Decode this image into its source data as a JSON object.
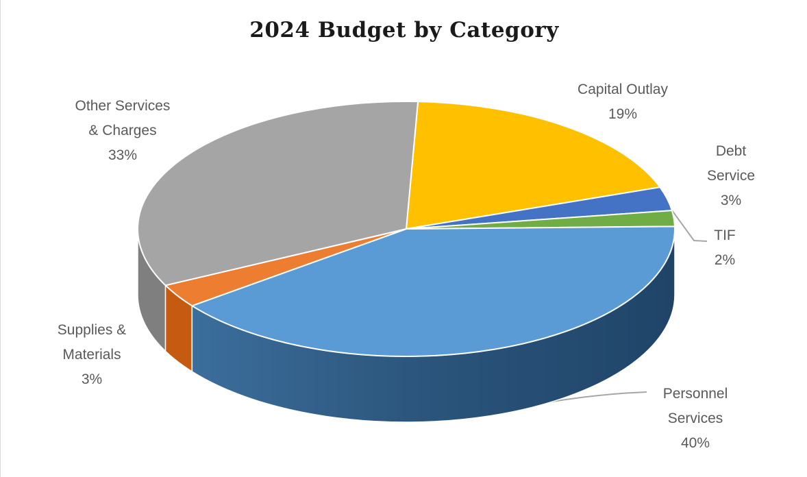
{
  "chart_data": {
    "type": "pie",
    "is_3d": true,
    "title": "2024 Budget by Category",
    "legend": "none",
    "start_angle_deg": 2.5,
    "label_color": "#595959",
    "leader_line_color": "#A6A6A6",
    "slices": [
      {
        "slug": "capital-outlay",
        "category": "Capital Outlay",
        "value_pct": 19,
        "color": "#FFC000",
        "side_color": "#BF9000",
        "label": "Capital Outlay\n19%"
      },
      {
        "slug": "debt-service",
        "category": "Debt Service",
        "value_pct": 3,
        "color": "#4472C4",
        "side_color": "#2F5597",
        "label": "Debt Service\n3%"
      },
      {
        "slug": "tif",
        "category": "TIF",
        "value_pct": 2,
        "color": "#70AD47",
        "side_color": "#548235",
        "label": "TIF\n2%"
      },
      {
        "slug": "personnel-services",
        "category": "Personnel Services",
        "value_pct": 40,
        "color": "#5B9BD5",
        "side_color": "#2E5B80",
        "label": "Personnel\nServices\n40%"
      },
      {
        "slug": "supplies-materials",
        "category": "Supplies & Materials",
        "value_pct": 3,
        "color": "#ED7D31",
        "side_color": "#C55A11",
        "label": "Supplies &\nMaterials\n3%"
      },
      {
        "slug": "other-services-charges",
        "category": "Other Services & Charges",
        "value_pct": 33,
        "color": "#A5A5A5",
        "side_color": "#7F7F7F",
        "label": "Other Services\n& Charges\n33%"
      }
    ]
  }
}
